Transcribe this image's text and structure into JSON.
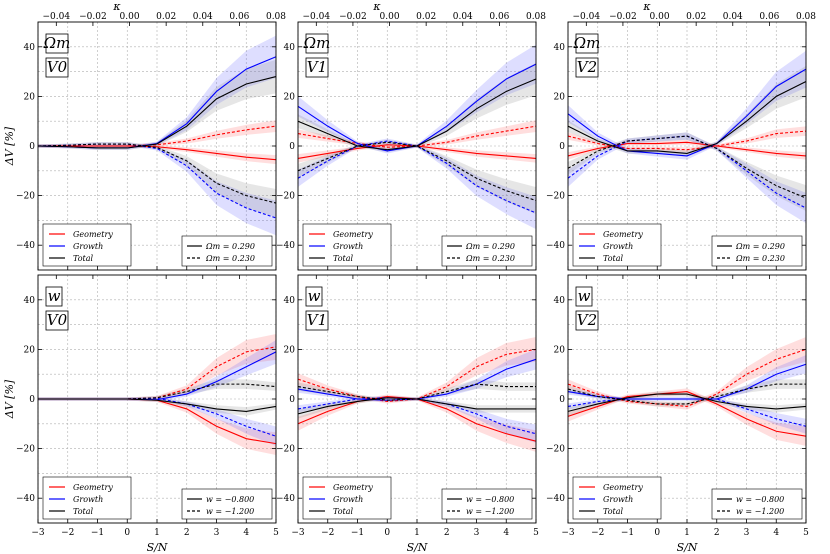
{
  "figure": {
    "ylabel": "ΔV [%]",
    "xlabel": "S/N",
    "top_xlabel": "κ",
    "x_ticks": [
      "−3",
      "−2",
      "−1",
      "0",
      "1",
      "2",
      "3",
      "4",
      "5"
    ],
    "top_ticks": [
      "−0.04",
      "−0.02",
      "0.00",
      "0.02",
      "0.04",
      "0.06",
      "0.08"
    ],
    "y_ticks": [
      "40",
      "20",
      "0",
      "−20",
      "−40"
    ]
  },
  "legend_components": [
    "Geometry",
    "Growth",
    "Total"
  ],
  "colors": {
    "geometry": "#ff0000",
    "growth": "#0000ff",
    "total": "#000000"
  },
  "chart_data": [
    {
      "type": "line",
      "param": "Ωm",
      "functional": "V0",
      "param_tag": "Ωm",
      "func_tag": "V0",
      "legend": {
        "solid": "Ωm = 0.290",
        "dashed": "Ωm = 0.230"
      },
      "x": [
        -3,
        -2,
        -1,
        0,
        1,
        2,
        3,
        4,
        5
      ],
      "xlim": [
        -3,
        5
      ],
      "ylim": [
        -50,
        50
      ],
      "top_xlim": [
        -0.05,
        0.08
      ],
      "series": [
        {
          "name": "Geometry",
          "style": "solid",
          "values": [
            0,
            0,
            0,
            0,
            -0.3,
            -1.5,
            -3,
            -4.5,
            -5.5
          ]
        },
        {
          "name": "Geometry",
          "style": "dashed",
          "values": [
            0,
            0,
            0,
            0,
            0.5,
            2,
            4.5,
            6.5,
            8
          ]
        },
        {
          "name": "Growth",
          "style": "solid",
          "values": [
            0,
            -0.3,
            -0.8,
            -0.8,
            1,
            9,
            22,
            31,
            36
          ]
        },
        {
          "name": "Growth",
          "style": "dashed",
          "values": [
            0,
            0.3,
            0.8,
            0.8,
            -1,
            -8,
            -19,
            -25,
            -29
          ]
        },
        {
          "name": "Total",
          "style": "solid",
          "values": [
            0,
            -0.3,
            -0.8,
            -0.8,
            0.8,
            8,
            19,
            25,
            28
          ]
        },
        {
          "name": "Total",
          "style": "dashed",
          "values": [
            0,
            0.3,
            0.8,
            0.8,
            -0.6,
            -6,
            -15,
            -20,
            -23
          ]
        }
      ]
    },
    {
      "type": "line",
      "param": "Ωm",
      "functional": "V1",
      "param_tag": "Ωm",
      "func_tag": "V1",
      "legend": {
        "solid": "Ωm = 0.290",
        "dashed": "Ωm = 0.230"
      },
      "x": [
        -3,
        -2,
        -1,
        0,
        1,
        2,
        3,
        4,
        5
      ],
      "xlim": [
        -3,
        5
      ],
      "ylim": [
        -50,
        50
      ],
      "top_xlim": [
        -0.05,
        0.08
      ],
      "series": [
        {
          "name": "Geometry",
          "style": "solid",
          "values": [
            -5,
            -3,
            -1,
            0.5,
            0,
            -1.5,
            -3,
            -4,
            -5
          ]
        },
        {
          "name": "Geometry",
          "style": "dashed",
          "values": [
            5,
            3,
            1,
            -0.5,
            0,
            1.5,
            4,
            6,
            8
          ]
        },
        {
          "name": "Growth",
          "style": "solid",
          "values": [
            16,
            8,
            1,
            -2,
            0,
            8,
            18,
            27,
            33
          ]
        },
        {
          "name": "Growth",
          "style": "dashed",
          "values": [
            -13,
            -6,
            0,
            2,
            0,
            -7,
            -16,
            -22,
            -27
          ]
        },
        {
          "name": "Total",
          "style": "solid",
          "values": [
            10,
            5,
            0,
            -1.5,
            0,
            6,
            15,
            22,
            27
          ]
        },
        {
          "name": "Total",
          "style": "dashed",
          "values": [
            -10,
            -5,
            0,
            1.5,
            0,
            -6,
            -13,
            -18,
            -22
          ]
        }
      ]
    },
    {
      "type": "line",
      "param": "Ωm",
      "functional": "V2",
      "param_tag": "Ωm",
      "func_tag": "V2",
      "legend": {
        "solid": "Ωm = 0.290",
        "dashed": "Ωm = 0.230"
      },
      "x": [
        -3,
        -2,
        -1,
        0,
        1,
        2,
        3,
        4,
        5
      ],
      "xlim": [
        -3,
        5
      ],
      "ylim": [
        -50,
        50
      ],
      "top_xlim": [
        -0.05,
        0.08
      ],
      "series": [
        {
          "name": "Geometry",
          "style": "solid",
          "values": [
            -4,
            -1,
            1,
            1,
            1.5,
            0,
            -1.5,
            -3,
            -4
          ]
        },
        {
          "name": "Geometry",
          "style": "dashed",
          "values": [
            4,
            1,
            -1,
            -1,
            -1.5,
            0,
            2,
            5,
            6
          ]
        },
        {
          "name": "Growth",
          "style": "solid",
          "values": [
            13,
            4,
            -2,
            -3,
            -4,
            1,
            12,
            24,
            31
          ]
        },
        {
          "name": "Growth",
          "style": "dashed",
          "values": [
            -13,
            -4,
            2,
            3,
            4,
            -1,
            -10,
            -19,
            -25
          ]
        },
        {
          "name": "Total",
          "style": "solid",
          "values": [
            8,
            2,
            -2,
            -2,
            -3,
            1,
            10,
            20,
            26
          ]
        },
        {
          "name": "Total",
          "style": "dashed",
          "values": [
            -9,
            -2,
            2,
            3,
            4,
            -1,
            -9,
            -16,
            -21
          ]
        }
      ]
    },
    {
      "type": "line",
      "param": "w",
      "functional": "V0",
      "param_tag": "w",
      "func_tag": "V0",
      "legend": {
        "solid": "w = −0.800",
        "dashed": "w = −1.200"
      },
      "x": [
        -3,
        -2,
        -1,
        0,
        1,
        2,
        3,
        4,
        5
      ],
      "xlim": [
        -3,
        5
      ],
      "ylim": [
        -50,
        50
      ],
      "top_xlim": [
        -0.05,
        0.08
      ],
      "series": [
        {
          "name": "Geometry",
          "style": "solid",
          "values": [
            0,
            0,
            0,
            0,
            -0.5,
            -4,
            -11,
            -16,
            -18
          ]
        },
        {
          "name": "Geometry",
          "style": "dashed",
          "values": [
            0,
            0,
            0,
            0,
            0.5,
            4,
            13,
            19,
            21
          ]
        },
        {
          "name": "Growth",
          "style": "solid",
          "values": [
            0,
            0,
            0,
            0,
            -0.3,
            2,
            7,
            13,
            19
          ]
        },
        {
          "name": "Growth",
          "style": "dashed",
          "values": [
            0,
            0,
            0,
            0,
            0.3,
            -2,
            -6,
            -11,
            -15
          ]
        },
        {
          "name": "Total",
          "style": "solid",
          "values": [
            0,
            0,
            0,
            0,
            -0.5,
            -2,
            -4,
            -5,
            -3
          ]
        },
        {
          "name": "Total",
          "style": "dashed",
          "values": [
            0,
            0,
            0,
            0,
            0.5,
            3,
            6,
            6,
            5
          ]
        }
      ]
    },
    {
      "type": "line",
      "param": "w",
      "functional": "V1",
      "param_tag": "w",
      "func_tag": "V1",
      "legend": {
        "solid": "w = −0.800",
        "dashed": "w = −1.200"
      },
      "x": [
        -3,
        -2,
        -1,
        0,
        1,
        2,
        3,
        4,
        5
      ],
      "xlim": [
        -3,
        5
      ],
      "ylim": [
        -50,
        50
      ],
      "top_xlim": [
        -0.05,
        0.08
      ],
      "series": [
        {
          "name": "Geometry",
          "style": "solid",
          "values": [
            -10,
            -5,
            -1,
            1,
            0,
            -4,
            -10,
            -14,
            -17
          ]
        },
        {
          "name": "Geometry",
          "style": "dashed",
          "values": [
            8,
            4,
            1,
            -1,
            0,
            5,
            13,
            18,
            20
          ]
        },
        {
          "name": "Growth",
          "style": "solid",
          "values": [
            4,
            2,
            0,
            -0.5,
            0,
            2,
            6,
            12,
            16
          ]
        },
        {
          "name": "Growth",
          "style": "dashed",
          "values": [
            -4,
            -2,
            0,
            0.5,
            0,
            -2,
            -6,
            -11,
            -14
          ]
        },
        {
          "name": "Total",
          "style": "solid",
          "values": [
            -6,
            -3,
            -1,
            0.5,
            0,
            -2,
            -4,
            -4,
            -4
          ]
        },
        {
          "name": "Total",
          "style": "dashed",
          "values": [
            5,
            3,
            1,
            -0.5,
            0,
            3,
            6,
            5,
            5
          ]
        }
      ]
    },
    {
      "type": "line",
      "param": "w",
      "functional": "V2",
      "param_tag": "w",
      "func_tag": "V2",
      "legend": {
        "solid": "w = −0.800",
        "dashed": "w = −1.200"
      },
      "x": [
        -3,
        -2,
        -1,
        0,
        1,
        2,
        3,
        4,
        5
      ],
      "xlim": [
        -3,
        5
      ],
      "ylim": [
        -50,
        50
      ],
      "top_xlim": [
        -0.05,
        0.08
      ],
      "series": [
        {
          "name": "Geometry",
          "style": "solid",
          "values": [
            -7,
            -3,
            1,
            2,
            3,
            -2,
            -8,
            -13,
            -15
          ]
        },
        {
          "name": "Geometry",
          "style": "dashed",
          "values": [
            6,
            2,
            -1,
            -2,
            -3,
            2,
            10,
            16,
            20
          ]
        },
        {
          "name": "Growth",
          "style": "solid",
          "values": [
            3,
            1,
            0,
            0,
            0,
            0,
            4,
            10,
            14
          ]
        },
        {
          "name": "Growth",
          "style": "dashed",
          "values": [
            -3,
            -1,
            0,
            0,
            0,
            0,
            -4,
            -8,
            -11
          ]
        },
        {
          "name": "Total",
          "style": "solid",
          "values": [
            -5,
            -2,
            0.5,
            2,
            2,
            -1,
            -3,
            -4,
            -3
          ]
        },
        {
          "name": "Total",
          "style": "dashed",
          "values": [
            4,
            1,
            -0.5,
            -2,
            -2,
            1,
            4,
            6,
            6
          ]
        }
      ]
    }
  ]
}
